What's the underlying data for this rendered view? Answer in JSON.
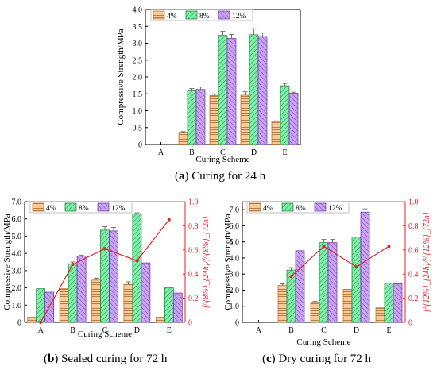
{
  "colors": {
    "pct4": "#f7c99c",
    "pct8": "#7ef0a8",
    "pct12": "#c9a4f2",
    "ratio_line": "#e8222a",
    "axis": "#000000"
  },
  "captions": {
    "a_letter": "a",
    "a_text": "Curing for 24 h",
    "b_letter": "b",
    "b_text": "Sealed curing for 72 h",
    "c_letter": "c",
    "c_text": "Dry curing for 72 h"
  },
  "chart_data": [
    {
      "id": "a",
      "type": "bar",
      "categories": [
        "A",
        "B",
        "C",
        "D",
        "E"
      ],
      "series": [
        {
          "name": "4%",
          "values": [
            0,
            0.36,
            1.45,
            1.46,
            0.68
          ],
          "errors": [
            0,
            0.02,
            0.05,
            0.1,
            0.02
          ]
        },
        {
          "name": "8%",
          "values": [
            0,
            1.61,
            3.23,
            3.25,
            1.74
          ],
          "errors": [
            0,
            0.05,
            0.12,
            0.18,
            0.07
          ]
        },
        {
          "name": "12%",
          "values": [
            0,
            1.63,
            3.14,
            3.2,
            1.52
          ],
          "errors": [
            0,
            0.07,
            0.12,
            0.1,
            0.03
          ]
        }
      ],
      "xlabel": "Curing Scheme",
      "ylabel": "Compressive Strength/MPa",
      "ylim": [
        0,
        4.0
      ],
      "yticks": [
        "0",
        "0.5",
        "1.0",
        "1.5",
        "2.0",
        "2.5",
        "3.0",
        "3.5",
        "4.0"
      ],
      "legend": "top-left"
    },
    {
      "id": "b",
      "type": "bar",
      "categories": [
        "A",
        "B",
        "C",
        "D",
        "E"
      ],
      "series": [
        {
          "name": "4%",
          "values": [
            0.3,
            1.95,
            2.45,
            2.2,
            0.3
          ],
          "errors": [
            0,
            0,
            0.12,
            0.15,
            0
          ]
        },
        {
          "name": "8%",
          "values": [
            1.95,
            3.4,
            5.35,
            6.3,
            2.0
          ],
          "errors": [
            0,
            0.1,
            0.2,
            0.05,
            0
          ]
        },
        {
          "name": "12%",
          "values": [
            1.75,
            3.85,
            5.3,
            3.45,
            1.7
          ],
          "errors": [
            0,
            0.05,
            0.2,
            0,
            0
          ]
        }
      ],
      "line": {
        "values": [
          0.0,
          0.48,
          0.61,
          0.51,
          0.85
        ]
      },
      "xlabel": "Curing Scheme",
      "ylabel": "Compressive Strength/MPa",
      "y2label": "f^{8%}_{24h}/f^{8%}_{72h}",
      "ylim": [
        0,
        7.0
      ],
      "y2lim": [
        0,
        1.0
      ],
      "yticks": [
        "0",
        "1.0",
        "2.0",
        "3.0",
        "4.0",
        "5.0",
        "6.0",
        "7.0"
      ],
      "y2ticks": [
        "0",
        "0.2",
        "0.4",
        "0.6",
        "0.8",
        "1.0"
      ],
      "legend": "top-left"
    },
    {
      "id": "c",
      "type": "bar",
      "categories": [
        "A",
        "B",
        "C",
        "D",
        "E"
      ],
      "series": [
        {
          "name": "4%",
          "values": [
            0,
            2.3,
            1.25,
            2.05,
            0.9
          ],
          "errors": [
            0,
            0.1,
            0.07,
            0,
            0
          ]
        },
        {
          "name": "8%",
          "values": [
            0,
            3.25,
            4.95,
            5.3,
            2.45
          ],
          "errors": [
            0,
            0.15,
            0.2,
            0,
            0
          ]
        },
        {
          "name": "12%",
          "values": [
            0,
            4.45,
            4.95,
            6.85,
            2.4
          ],
          "errors": [
            0,
            0,
            0.2,
            0.2,
            0
          ]
        }
      ],
      "line": {
        "values": [
          null,
          0.38,
          0.63,
          0.46,
          0.63
        ]
      },
      "xlabel": "Curing Scheme",
      "ylabel": "Compressive Strength/MPa",
      "y2label": "f^{12%}_{24h}/f^{12%}_{72h}",
      "ylim": [
        0,
        7.5
      ],
      "y2lim": [
        0,
        1.0
      ],
      "yticks": [
        "0",
        "1.0",
        "2.0",
        "3.0",
        "4.0",
        "5.0",
        "6.0",
        "7.0"
      ],
      "y2ticks": [
        "0",
        "0.2",
        "0.4",
        "0.6",
        "0.8",
        "1.0"
      ],
      "legend": "top-left"
    }
  ]
}
